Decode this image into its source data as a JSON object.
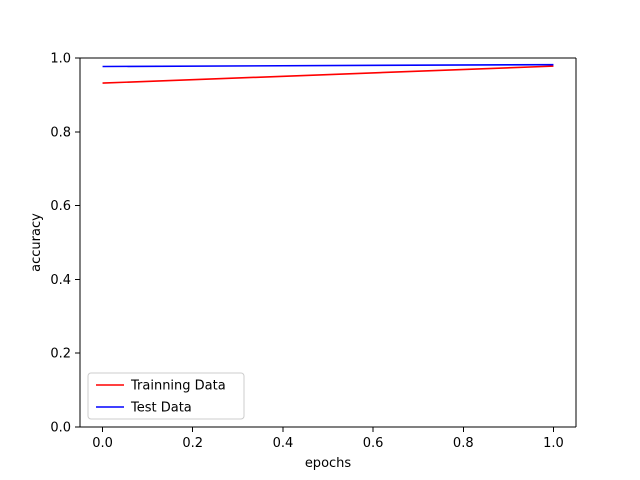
{
  "chart_data": {
    "type": "line",
    "xlabel": "epochs",
    "ylabel": "accuracy",
    "xlim": [
      -0.05,
      1.05
    ],
    "ylim": [
      0.0,
      1.0
    ],
    "xticks": [
      0.0,
      0.2,
      0.4,
      0.6,
      0.8,
      1.0
    ],
    "xtick_labels": [
      "0.0",
      "0.2",
      "0.4",
      "0.6",
      "0.8",
      "1.0"
    ],
    "yticks": [
      0.0,
      0.2,
      0.4,
      0.6,
      0.8,
      1.0
    ],
    "ytick_labels": [
      "0.0",
      "0.2",
      "0.4",
      "0.6",
      "0.8",
      "1.0"
    ],
    "grid": false,
    "legend_position": "lower-left",
    "series": [
      {
        "name": "Trainning Data",
        "color": "#ff0000",
        "x": [
          0,
          1
        ],
        "y": [
          0.932,
          0.978
        ]
      },
      {
        "name": "Test Data",
        "color": "#0000ff",
        "x": [
          0,
          1
        ],
        "y": [
          0.977,
          0.982
        ]
      }
    ]
  }
}
